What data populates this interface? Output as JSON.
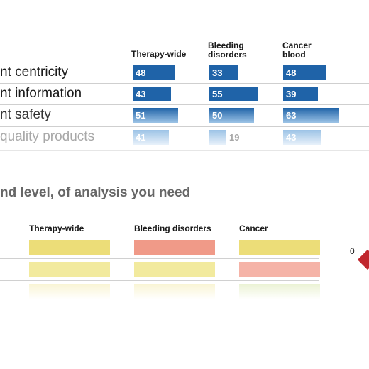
{
  "top_table": {
    "columns": [
      "Therapy-wide",
      "Bleeding\ndisorders",
      "Cancer\nblood"
    ],
    "rows": [
      {
        "label": "nt centricity",
        "values": [
          48,
          33,
          48
        ]
      },
      {
        "label": "nt information",
        "values": [
          43,
          55,
          39
        ]
      },
      {
        "label": "nt safety",
        "values": [
          51,
          50,
          63
        ]
      },
      {
        "label": "quality products",
        "values": [
          41,
          19,
          43
        ]
      }
    ],
    "max_value": 100
  },
  "section": {
    "title": "nd level, of analysis you need"
  },
  "heatmap": {
    "columns": [
      "Therapy-wide",
      "Bleeding disorders",
      "Cancer"
    ],
    "rows": [
      [
        "#ecdd78",
        "#f09a88",
        "#ecdd78"
      ],
      [
        "#f2ea9e",
        "#f2ea9e",
        "#f5b3a7"
      ],
      [
        "#f7f1c6",
        "#f7f1c6",
        "#e4eec6"
      ]
    ]
  },
  "scale": {
    "zero_label": "0",
    "marker_color": "#c0262d"
  },
  "colors": {
    "bar_dark": "#1f63a8",
    "bar_mid": "#4a86c4",
    "bar_light": "#9cc3e6"
  }
}
